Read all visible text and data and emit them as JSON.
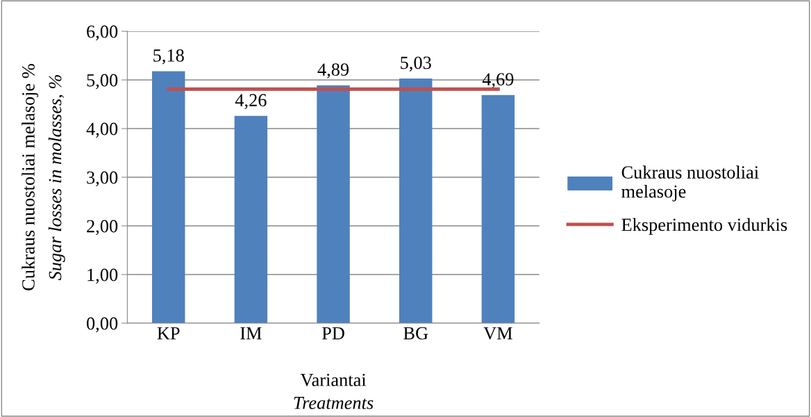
{
  "chart_data": {
    "type": "bar",
    "xlabel": "Variantai\nTreatments",
    "ylabel": "Cukraus nuostoliai melasoje %\nSugar losses in molasses, %",
    "categories": [
      "KP",
      "IM",
      "PD",
      "BG",
      "VM"
    ],
    "series": [
      {
        "name": "Cukraus nuostoliai melasoje",
        "color": "#4f81bd",
        "values": [
          5.18,
          4.26,
          4.89,
          5.03,
          4.69
        ],
        "value_labels": [
          "5,18",
          "4,26",
          "4,89",
          "5,03",
          "4,69"
        ]
      },
      {
        "name": "Eksperimento vidurkis",
        "type": "line",
        "color": "#c0504d",
        "values": [
          4.81,
          4.81,
          4.81,
          4.81,
          4.81
        ]
      }
    ],
    "ylim": [
      0,
      6
    ],
    "yticks": [
      {
        "value": 0,
        "label": "0,00"
      },
      {
        "value": 1,
        "label": "1,00"
      },
      {
        "value": 2,
        "label": "2,00"
      },
      {
        "value": 3,
        "label": "3,00"
      },
      {
        "value": 4,
        "label": "4,00"
      },
      {
        "value": 5,
        "label": "5,00"
      },
      {
        "value": 6,
        "label": "6,00"
      }
    ],
    "grid": "y",
    "legend": "right",
    "marker": "none",
    "line_style": "solid"
  }
}
